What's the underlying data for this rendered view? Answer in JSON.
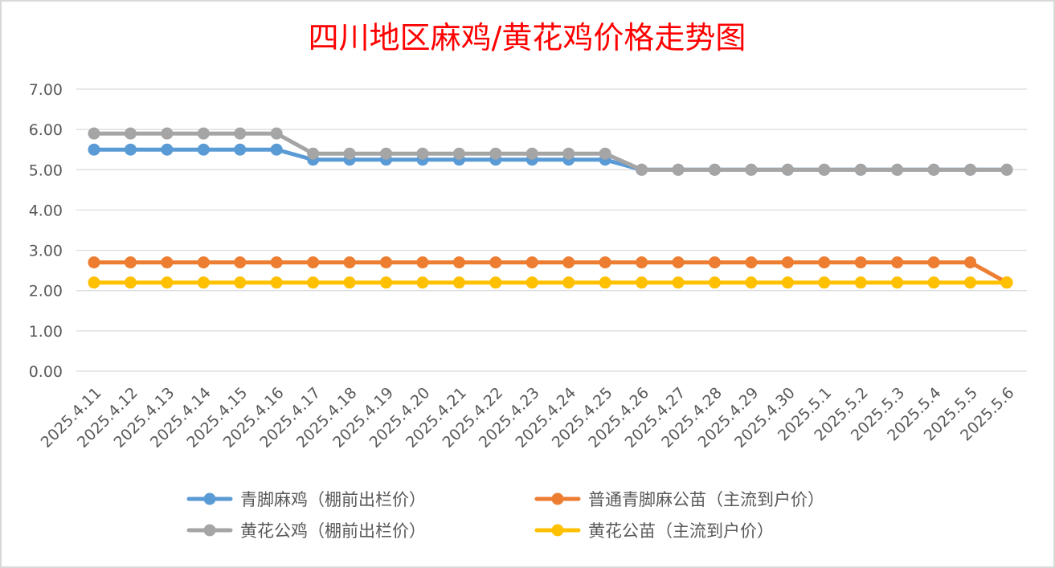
{
  "chart_data": {
    "type": "line",
    "title": "四川地区麻鸡/黄花鸡价格走势图",
    "xlabel": "",
    "ylabel": "",
    "ylim": [
      0,
      7
    ],
    "y_ticks": [
      "0.00",
      "1.00",
      "2.00",
      "3.00",
      "4.00",
      "5.00",
      "6.00",
      "7.00"
    ],
    "grid": true,
    "legend_position": "bottom",
    "categories": [
      "2025.4.11",
      "2025.4.12",
      "2025.4.13",
      "2025.4.14",
      "2025.4.15",
      "2025.4.16",
      "2025.4.17",
      "2025.4.18",
      "2025.4.19",
      "2025.4.20",
      "2025.4.21",
      "2025.4.22",
      "2025.4.23",
      "2025.4.24",
      "2025.4.25",
      "2025.4.26",
      "2025.4.27",
      "2025.4.28",
      "2025.4.29",
      "2025.4.30",
      "2025.5.1",
      "2025.5.2",
      "2025.5.3",
      "2025.5.4",
      "2025.5.5",
      "2025.5.6"
    ],
    "series": [
      {
        "name": "青脚麻鸡（棚前出栏价）",
        "color": "#5b9bd5",
        "values": [
          5.5,
          5.5,
          5.5,
          5.5,
          5.5,
          5.5,
          5.25,
          5.25,
          5.25,
          5.25,
          5.25,
          5.25,
          5.25,
          5.25,
          5.25,
          5.0,
          5.0,
          5.0,
          5.0,
          5.0,
          5.0,
          5.0,
          5.0,
          5.0,
          5.0,
          5.0
        ]
      },
      {
        "name": "普通青脚麻公苗（主流到户价）",
        "color": "#ed7d31",
        "values": [
          2.7,
          2.7,
          2.7,
          2.7,
          2.7,
          2.7,
          2.7,
          2.7,
          2.7,
          2.7,
          2.7,
          2.7,
          2.7,
          2.7,
          2.7,
          2.7,
          2.7,
          2.7,
          2.7,
          2.7,
          2.7,
          2.7,
          2.7,
          2.7,
          2.7,
          2.2
        ]
      },
      {
        "name": "黄花公鸡（棚前出栏价）",
        "color": "#a5a5a5",
        "values": [
          5.9,
          5.9,
          5.9,
          5.9,
          5.9,
          5.9,
          5.4,
          5.4,
          5.4,
          5.4,
          5.4,
          5.4,
          5.4,
          5.4,
          5.4,
          5.0,
          5.0,
          5.0,
          5.0,
          5.0,
          5.0,
          5.0,
          5.0,
          5.0,
          5.0,
          5.0
        ]
      },
      {
        "name": "黄花公苗（主流到户价）",
        "color": "#ffc000",
        "values": [
          2.2,
          2.2,
          2.2,
          2.2,
          2.2,
          2.2,
          2.2,
          2.2,
          2.2,
          2.2,
          2.2,
          2.2,
          2.2,
          2.2,
          2.2,
          2.2,
          2.2,
          2.2,
          2.2,
          2.2,
          2.2,
          2.2,
          2.2,
          2.2,
          2.2,
          2.2
        ]
      }
    ],
    "draw_order": [
      0,
      1,
      3,
      2
    ],
    "title_color": "#ff0000"
  }
}
